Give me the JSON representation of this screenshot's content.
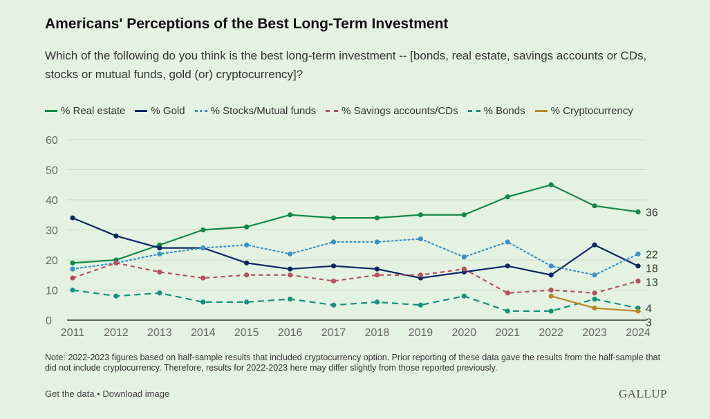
{
  "title": "Americans' Perceptions of the Best Long-Term Investment",
  "subtitle": "Which of the following do you think is the best long-term investment -- [bonds, real estate, savings accounts or CDs, stocks or mutual funds, gold (or) cryptocurrency]?",
  "note": "Note: 2022-2023 figures based on half-sample results that included cryptocurrency option. Prior reporting of these data gave the results from the half-sample that did not include cryptocurrency. Therefore, results for 2022-2023 here may differ slightly from those reported previously.",
  "links": {
    "get_data": "Get the data",
    "separator": " • ",
    "download": "Download image"
  },
  "logo": "GALLUP",
  "chart_data": {
    "type": "line",
    "x": [
      2011,
      2012,
      2013,
      2014,
      2015,
      2016,
      2017,
      2018,
      2019,
      2020,
      2021,
      2022,
      2023,
      2024
    ],
    "ylim": [
      0,
      60
    ],
    "yticks": [
      0,
      10,
      20,
      30,
      40,
      50,
      60
    ],
    "grid": true,
    "legend": "top",
    "series": [
      {
        "name": "% Real estate",
        "color": "#13884a",
        "style": "solid",
        "values": [
          19,
          20,
          25,
          30,
          31,
          35,
          34,
          34,
          35,
          35,
          41,
          45,
          38,
          36
        ],
        "end_label": "36"
      },
      {
        "name": "% Gold",
        "color": "#0d2567",
        "style": "solid",
        "values": [
          34,
          28,
          24,
          24,
          19,
          17,
          18,
          17,
          14,
          16,
          18,
          15,
          25,
          18
        ],
        "end_label": "18"
      },
      {
        "name": "% Stocks/Mutual funds",
        "color": "#3a90c8",
        "style": "dotted",
        "values": [
          17,
          19,
          22,
          24,
          25,
          22,
          26,
          26,
          27,
          21,
          26,
          18,
          15,
          22
        ],
        "end_label": "22"
      },
      {
        "name": "% Savings accounts/CDs",
        "color": "#b84e5e",
        "style": "dashed",
        "values": [
          14,
          19,
          16,
          14,
          15,
          15,
          13,
          15,
          15,
          17,
          9,
          10,
          9,
          13
        ],
        "end_label": "13"
      },
      {
        "name": "% Bonds",
        "color": "#12917d",
        "style": "longdash",
        "values": [
          10,
          8,
          9,
          6,
          6,
          7,
          5,
          6,
          5,
          8,
          3,
          3,
          7,
          4
        ],
        "end_label": "4"
      },
      {
        "name": "% Cryptocurrency",
        "color": "#b8892b",
        "style": "solid",
        "values": [
          null,
          null,
          null,
          null,
          null,
          null,
          null,
          null,
          null,
          null,
          null,
          8,
          4,
          3
        ],
        "end_label": "3"
      }
    ]
  }
}
